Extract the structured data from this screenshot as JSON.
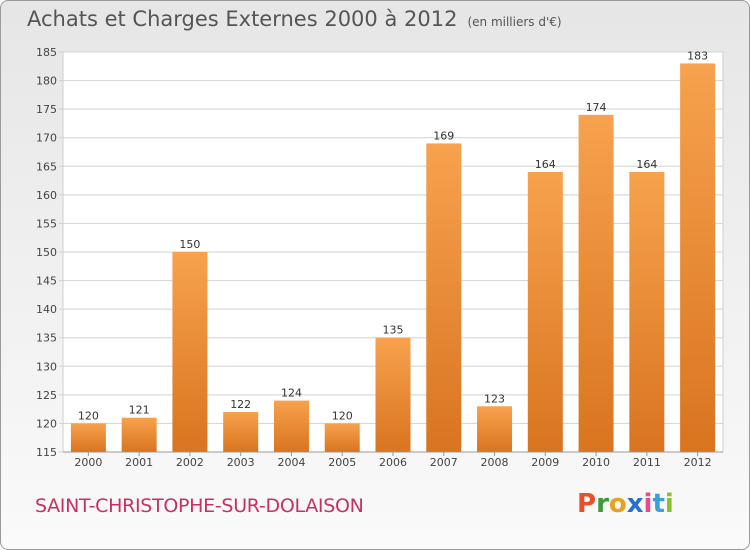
{
  "title": "Achats et Charges Externes 2000 à 2012",
  "unit_note": "(en milliers d'€)",
  "commune": "SAINT-CHRISTOPHE-SUR-DOLAISON",
  "logo": {
    "letters": [
      "P",
      "r",
      "o",
      "x",
      "i",
      "t",
      "i"
    ],
    "colors": [
      "#e8502a",
      "#3a9a3a",
      "#e8a020",
      "#2a6fd0",
      "#e84a8a",
      "#3aa0d8",
      "#8ac030"
    ]
  },
  "colors": {
    "bar_light": "#f7a24e",
    "bar_dark": "#d9741f",
    "grid": "#d2d2d2",
    "axis_text": "#444444"
  },
  "chart_data": {
    "type": "bar",
    "title": "Achats et Charges Externes 2000 à 2012",
    "subtitle": "(en milliers d'€)",
    "categories": [
      "2000",
      "2001",
      "2002",
      "2003",
      "2004",
      "2005",
      "2006",
      "2007",
      "2008",
      "2009",
      "2010",
      "2011",
      "2012"
    ],
    "values": [
      120,
      121,
      150,
      122,
      124,
      120,
      135,
      169,
      123,
      164,
      174,
      164,
      183
    ],
    "ylim": [
      115,
      185
    ],
    "yticks": [
      115,
      120,
      125,
      130,
      135,
      140,
      145,
      150,
      155,
      160,
      165,
      170,
      175,
      180,
      185
    ],
    "grid": true,
    "data_labels": true
  }
}
